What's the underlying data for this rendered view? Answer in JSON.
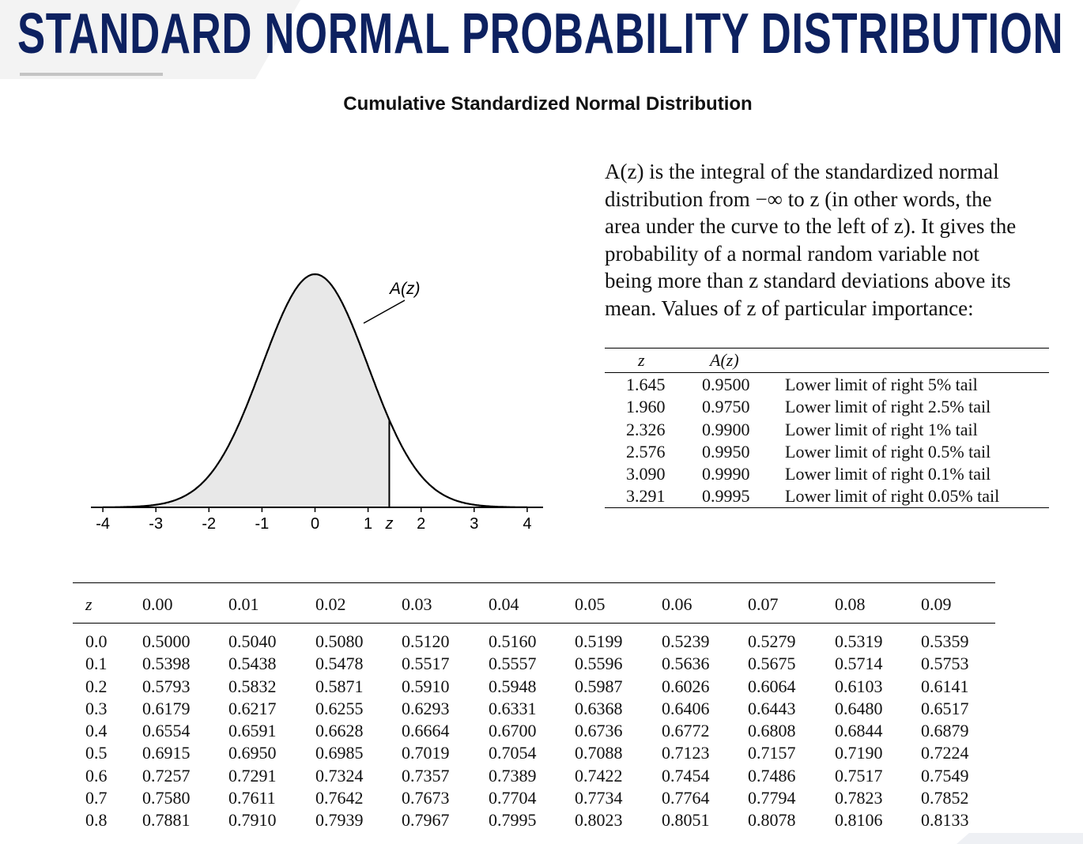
{
  "header": {
    "title": "STANDARD NORMAL PROBABILITY DISTRIBUTION",
    "subtitle": "Cumulative Standardized Normal Distribution"
  },
  "description": {
    "lines": [
      "A(z) is the integral of the standardized normal",
      "distribution from −∞ to z (in other words, the",
      "area under the curve to the left of z).  It gives the",
      "probability of a normal random variable not",
      "being more than z standard deviations above its",
      "mean.  Values of z of particular importance:"
    ]
  },
  "importance_table": {
    "headers": [
      "z",
      "A(z)",
      ""
    ],
    "rows": [
      [
        "1.645",
        "0.9500",
        "Lower limit of right 5% tail"
      ],
      [
        "1.960",
        "0.9750",
        "Lower limit of right 2.5% tail"
      ],
      [
        "2.326",
        "0.9900",
        "Lower limit of right 1% tail"
      ],
      [
        "2.576",
        "0.9950",
        "Lower limit of right 0.5% tail"
      ],
      [
        "3.090",
        "0.9990",
        "Lower limit of right 0.1% tail"
      ],
      [
        "3.291",
        "0.9995",
        "Lower limit of right 0.05% tail"
      ]
    ]
  },
  "chart_data": {
    "type": "area",
    "title": "",
    "curve": "standard normal density",
    "x_ticks": [
      "-4",
      "-3",
      "-2",
      "-1",
      "0",
      "1",
      "2",
      "3",
      "4"
    ],
    "xlim": [
      -4,
      4
    ],
    "shaded_to_z": 1.4,
    "z_label": "z",
    "area_label": "A(z)",
    "colors": {
      "fill": "#e8e8e8",
      "line": "#000000"
    }
  },
  "main_table": {
    "headers": [
      "z",
      "0.00",
      "0.01",
      "0.02",
      "0.03",
      "0.04",
      "0.05",
      "0.06",
      "0.07",
      "0.08",
      "0.09"
    ],
    "rows": [
      [
        "0.0",
        "0.5000",
        "0.5040",
        "0.5080",
        "0.5120",
        "0.5160",
        "0.5199",
        "0.5239",
        "0.5279",
        "0.5319",
        "0.5359"
      ],
      [
        "0.1",
        "0.5398",
        "0.5438",
        "0.5478",
        "0.5517",
        "0.5557",
        "0.5596",
        "0.5636",
        "0.5675",
        "0.5714",
        "0.5753"
      ],
      [
        "0.2",
        "0.5793",
        "0.5832",
        "0.5871",
        "0.5910",
        "0.5948",
        "0.5987",
        "0.6026",
        "0.6064",
        "0.6103",
        "0.6141"
      ],
      [
        "0.3",
        "0.6179",
        "0.6217",
        "0.6255",
        "0.6293",
        "0.6331",
        "0.6368",
        "0.6406",
        "0.6443",
        "0.6480",
        "0.6517"
      ],
      [
        "0.4",
        "0.6554",
        "0.6591",
        "0.6628",
        "0.6664",
        "0.6700",
        "0.6736",
        "0.6772",
        "0.6808",
        "0.6844",
        "0.6879"
      ],
      [
        "0.5",
        "0.6915",
        "0.6950",
        "0.6985",
        "0.7019",
        "0.7054",
        "0.7088",
        "0.7123",
        "0.7157",
        "0.7190",
        "0.7224"
      ],
      [
        "0.6",
        "0.7257",
        "0.7291",
        "0.7324",
        "0.7357",
        "0.7389",
        "0.7422",
        "0.7454",
        "0.7486",
        "0.7517",
        "0.7549"
      ],
      [
        "0.7",
        "0.7580",
        "0.7611",
        "0.7642",
        "0.7673",
        "0.7704",
        "0.7734",
        "0.7764",
        "0.7794",
        "0.7823",
        "0.7852"
      ],
      [
        "0.8",
        "0.7881",
        "0.7910",
        "0.7939",
        "0.7967",
        "0.7995",
        "0.8023",
        "0.8051",
        "0.8078",
        "0.8106",
        "0.8133"
      ]
    ]
  },
  "colors": {
    "title": "#0d2160"
  }
}
